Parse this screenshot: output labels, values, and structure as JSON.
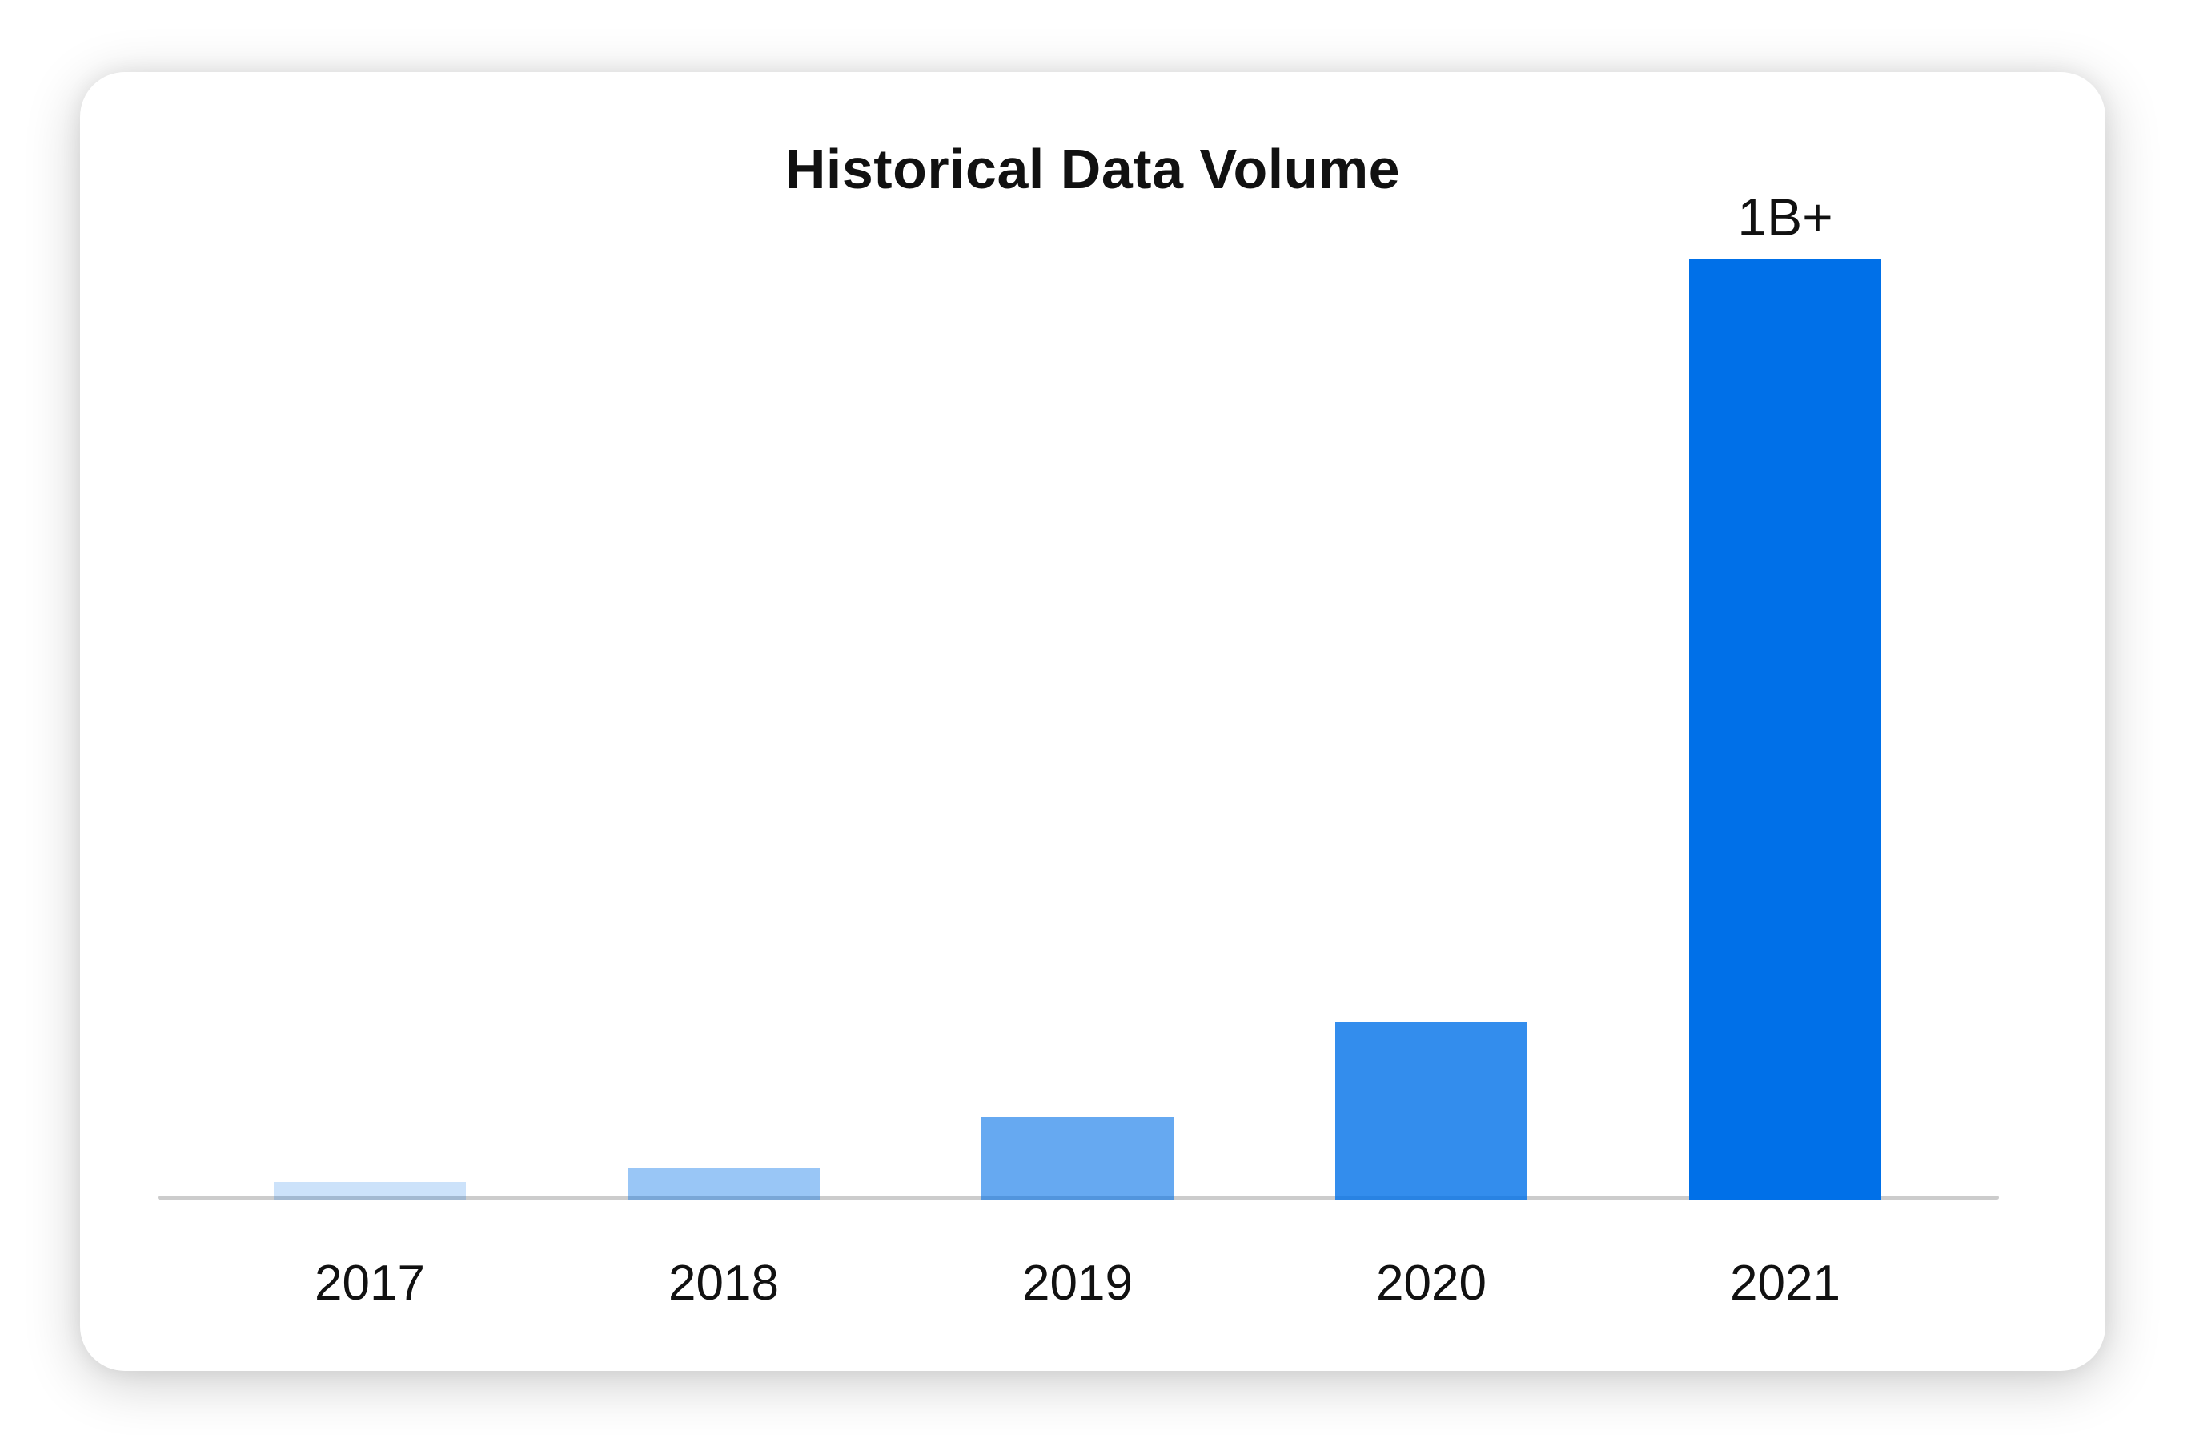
{
  "page": {
    "background_color": "#ffffff"
  },
  "card": {
    "background_color": "#ffffff"
  },
  "chart_data": {
    "type": "bar",
    "title": "Historical Data Volume",
    "categories": [
      "2017",
      "2018",
      "2019",
      "2020",
      "2021"
    ],
    "values_relative": [
      0.019,
      0.033,
      0.088,
      0.189,
      1.0
    ],
    "bar_value_labels": [
      "",
      "",
      "",
      "",
      "1B+"
    ],
    "bar_base_color": "#0070e8",
    "bar_opacities": [
      0.2,
      0.4,
      0.6,
      0.8,
      1.0
    ],
    "bar_colors_effective": [
      "#cce1f8",
      "#99c3f2",
      "#66a5ef",
      "#3389eb",
      "#0070e8"
    ],
    "axis_line_color": "#cccccc",
    "text_color": "#111111",
    "xlabel": "",
    "ylabel": "",
    "gridlines": false,
    "legend": null
  }
}
